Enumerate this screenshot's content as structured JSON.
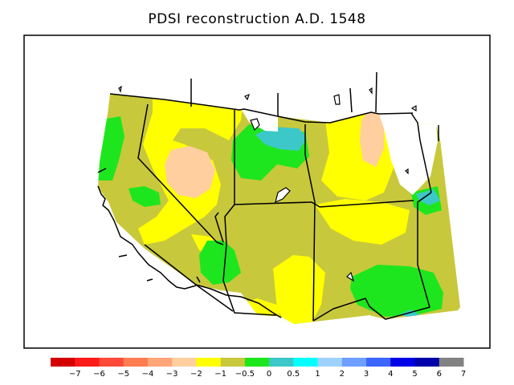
{
  "title": "PDSI reconstruction A.D. 1548",
  "legend": {
    "colors": [
      "#d40000",
      "#ff1a1a",
      "#ff4a3a",
      "#ff7d50",
      "#ffa57a",
      "#ffcfa0",
      "#ffff00",
      "#c8c83c",
      "#1ee61e",
      "#3cc8c8",
      "#00ffff",
      "#a0d2ff",
      "#6e9fff",
      "#3c64ff",
      "#0000e6",
      "#0000aa",
      "#828282"
    ],
    "tick_labels": [
      "−7",
      "−6",
      "−5",
      "−4",
      "−3",
      "−2",
      "−1",
      "−0.5",
      "0",
      "0.5",
      "1",
      "2",
      "3",
      "4",
      "5",
      "6",
      "7"
    ]
  },
  "map": {
    "region": "Western United States",
    "background_color": "#c8c83c",
    "regions": [
      {
        "class": "wet-0-0.5",
        "color": "#1ee61e"
      },
      {
        "class": "dry-1-2",
        "color": "#ffff00"
      },
      {
        "class": "dry-2-3",
        "color": "#ffcfa0"
      },
      {
        "class": "wet-0.5-1",
        "color": "#3cc8c8"
      }
    ]
  }
}
